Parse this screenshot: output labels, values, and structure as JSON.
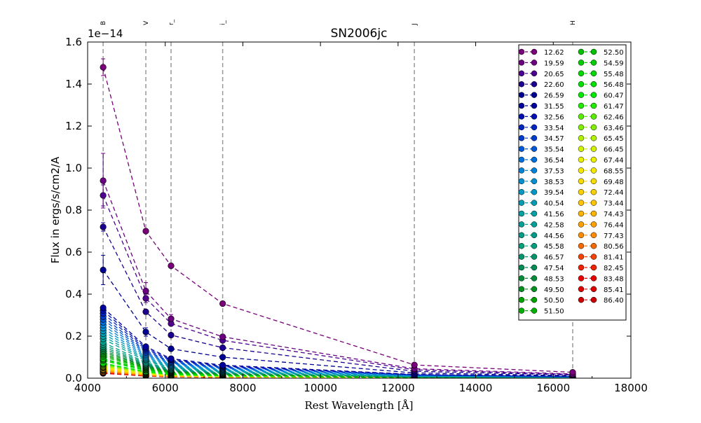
{
  "chart_data": {
    "type": "line",
    "title": "SN2006jc",
    "xlabel": "Rest Wavelength [Å]",
    "ylabel": "Flux in ergs/s/cm2/A",
    "y_offset_text": "1e−14",
    "y_multiplier": 1e-14,
    "xlim": [
      4000,
      18000
    ],
    "ylim": [
      0.0,
      1.6
    ],
    "xticks": [
      "4000",
      "6000",
      "8000",
      "10000",
      "12000",
      "14000",
      "16000",
      "18000"
    ],
    "yticks": [
      "0.0",
      "0.2",
      "0.4",
      "0.6",
      "0.8",
      "1.0",
      "1.2",
      "1.4",
      "1.6"
    ],
    "line_style": "dashed",
    "grid": false,
    "legend_position": "top-right",
    "legend_columns": 2,
    "bands": [
      {
        "name": "B",
        "wavelength": 4400
      },
      {
        "name": "V",
        "wavelength": 5500
      },
      {
        "name": "r_",
        "wavelength": 6150
      },
      {
        "name": "i_",
        "wavelength": 7480
      },
      {
        "name": "J",
        "wavelength": 12420
      },
      {
        "name": "H",
        "wavelength": 16500
      }
    ],
    "series": [
      {
        "name": "12.62",
        "color": "#780078",
        "values": [
          1.48,
          0.7,
          0.535,
          0.355,
          0.063,
          0.028
        ],
        "errors": [
          0.04,
          0.01,
          0.01,
          0.01,
          0.005,
          0.003
        ]
      },
      {
        "name": "19.59",
        "color": "#6b0080",
        "values": [
          0.94,
          0.415,
          0.283,
          0.197,
          0.045,
          0.02
        ],
        "errors": [
          0.13,
          0.04,
          0.02,
          0.01,
          0.004,
          0.003
        ]
      },
      {
        "name": "20.65",
        "color": "#4b0090",
        "values": [
          0.87,
          0.38,
          0.26,
          0.18,
          0.04,
          0.018
        ],
        "errors": [
          0.05,
          0.02,
          0.01,
          0.01,
          0.004,
          0.003
        ]
      },
      {
        "name": "22.60",
        "color": "#1e0090",
        "values": [
          0.72,
          0.316,
          0.205,
          0.145,
          0.033,
          0.015
        ],
        "errors": [
          0.02,
          0.01,
          0.01,
          0.01,
          0.003,
          0.002
        ]
      },
      {
        "name": "26.59",
        "color": "#000090",
        "values": [
          0.515,
          0.22,
          0.14,
          0.1,
          0.025,
          0.012
        ],
        "errors": [
          0.07,
          0.02,
          0.01,
          0.01,
          0.003,
          0.002
        ]
      },
      {
        "name": "31.55",
        "color": "#00009c",
        "values": [
          0.335,
          0.15,
          0.093,
          0.062,
          0.018,
          0.009
        ],
        "errors": [
          0.01,
          0.01,
          0.005,
          0.004,
          0.002,
          0.002
        ]
      },
      {
        "name": "32.56",
        "color": "#0010b0",
        "values": [
          0.322,
          0.143,
          0.088,
          0.058,
          0.017,
          0.009
        ],
        "errors": [
          0.01,
          0.01,
          0.005,
          0.004,
          0.002,
          0.002
        ]
      },
      {
        "name": "33.54",
        "color": "#0024c0",
        "values": [
          0.308,
          0.136,
          0.084,
          0.055,
          0.016,
          0.008
        ],
        "errors": [
          0.01,
          0.01,
          0.005,
          0.004,
          0.002,
          0.002
        ]
      },
      {
        "name": "34.57",
        "color": "#003ccc",
        "values": [
          0.293,
          0.129,
          0.079,
          0.052,
          0.015,
          0.008
        ],
        "errors": [
          0.01,
          0.01,
          0.005,
          0.004,
          0.002,
          0.002
        ]
      },
      {
        "name": "35.54",
        "color": "#0058d8",
        "values": [
          0.28,
          0.123,
          0.075,
          0.049,
          0.014,
          0.007
        ],
        "errors": [
          0.01,
          0.01,
          0.005,
          0.004,
          0.002,
          0.002
        ]
      },
      {
        "name": "36.54",
        "color": "#0070dc",
        "values": [
          0.266,
          0.117,
          0.071,
          0.046,
          0.013,
          0.007
        ],
        "errors": [
          0.01,
          0.01,
          0.005,
          0.004,
          0.002,
          0.002
        ]
      },
      {
        "name": "37.53",
        "color": "#0082d8",
        "values": [
          0.252,
          0.111,
          0.067,
          0.043,
          0.012,
          0.006
        ],
        "errors": [
          0.01,
          0.01,
          0.005,
          0.004,
          0.002,
          0.002
        ]
      },
      {
        "name": "38.53",
        "color": "#0090d0",
        "values": [
          0.238,
          0.105,
          0.063,
          0.04,
          0.011,
          0.006
        ],
        "errors": [
          0.01,
          0.01,
          0.005,
          0.004,
          0.002,
          0.002
        ]
      },
      {
        "name": "39.54",
        "color": "#0098c4",
        "values": [
          0.225,
          0.099,
          0.059,
          0.037,
          0.01,
          0.005
        ],
        "errors": [
          0.01,
          0.01,
          0.005,
          0.004,
          0.002,
          0.002
        ]
      },
      {
        "name": "40.54",
        "color": "#009cb4",
        "values": [
          0.212,
          0.093,
          0.055,
          0.034,
          0.009,
          0.005
        ],
        "errors": [
          0.01,
          0.01,
          0.005,
          0.004,
          0.002,
          0.002
        ]
      },
      {
        "name": "41.56",
        "color": "#00a0a4",
        "values": [
          0.199,
          0.088,
          0.051,
          0.032,
          0.008,
          0.004
        ],
        "errors": [
          0.01,
          0.01,
          0.005,
          0.004,
          0.002,
          0.002
        ]
      },
      {
        "name": "42.58",
        "color": "#00a098",
        "values": [
          0.187,
          0.082,
          0.048,
          0.03,
          0.008,
          0.004
        ],
        "errors": [
          0.01,
          0.01,
          0.005,
          0.004,
          0.002,
          0.002
        ]
      },
      {
        "name": "44.56",
        "color": "#009c88",
        "values": [
          0.17,
          0.075,
          0.044,
          0.027,
          0.007,
          0.004
        ],
        "errors": [
          0.01,
          0.01,
          0.005,
          0.004,
          0.002,
          0.002
        ]
      },
      {
        "name": "45.58",
        "color": "#00a07c",
        "values": [
          0.16,
          0.07,
          0.041,
          0.025,
          0.007,
          0.003
        ],
        "errors": [
          0.01,
          0.01,
          0.005,
          0.004,
          0.002,
          0.002
        ]
      },
      {
        "name": "46.57",
        "color": "#00946c",
        "values": [
          0.15,
          0.066,
          0.038,
          0.024,
          0.006,
          0.003
        ],
        "errors": [
          0.01,
          0.01,
          0.005,
          0.004,
          0.002,
          0.002
        ]
      },
      {
        "name": "47.54",
        "color": "#008c54",
        "values": [
          0.141,
          0.062,
          0.036,
          0.022,
          0.006,
          0.003
        ],
        "errors": [
          0.01,
          0.01,
          0.005,
          0.004,
          0.002,
          0.002
        ]
      },
      {
        "name": "48.53",
        "color": "#008c38",
        "values": [
          0.132,
          0.058,
          0.034,
          0.021,
          0.005,
          0.003
        ],
        "errors": [
          0.01,
          0.01,
          0.005,
          0.004,
          0.002,
          0.002
        ]
      },
      {
        "name": "49.50",
        "color": "#009020",
        "values": [
          0.124,
          0.055,
          0.032,
          0.02,
          0.005,
          0.002
        ],
        "errors": [
          0.01,
          0.01,
          0.005,
          0.004,
          0.002,
          0.002
        ]
      },
      {
        "name": "50.50",
        "color": "#00a000",
        "values": [
          0.116,
          0.051,
          0.03,
          0.018,
          0.005,
          0.002
        ],
        "errors": [
          0.01,
          0.01,
          0.005,
          0.004,
          0.002,
          0.002
        ]
      },
      {
        "name": "51.50",
        "color": "#00b000",
        "values": [
          0.109,
          0.048,
          0.028,
          0.017,
          0.004,
          0.002
        ],
        "errors": [
          0.01,
          0.01,
          0.005,
          0.004,
          0.002,
          0.002
        ]
      },
      {
        "name": "52.50",
        "color": "#00c000",
        "values": [
          0.102,
          0.045,
          0.026,
          0.016,
          0.004,
          0.002
        ],
        "errors": [
          0.01,
          0.01,
          0.005,
          0.004,
          0.002,
          0.002
        ]
      },
      {
        "name": "54.59",
        "color": "#00cc00",
        "values": [
          0.093,
          0.041,
          0.024,
          0.015,
          0.004,
          0.002
        ],
        "errors": [
          0.01,
          0.01,
          0.005,
          0.004,
          0.002,
          0.002
        ]
      },
      {
        "name": "55.48",
        "color": "#00d800",
        "values": [
          0.088,
          0.039,
          0.023,
          0.014,
          0.004,
          0.002
        ],
        "errors": [
          0.01,
          0.01,
          0.005,
          0.004,
          0.002,
          0.002
        ]
      },
      {
        "name": "56.48",
        "color": "#00e000",
        "values": [
          0.083,
          0.037,
          0.021,
          0.013,
          0.003,
          0.002
        ],
        "errors": [
          0.01,
          0.01,
          0.005,
          0.004,
          0.002,
          0.002
        ]
      },
      {
        "name": "60.47",
        "color": "#00e800",
        "values": [
          0.072,
          0.032,
          0.018,
          0.011,
          0.003,
          0.002
        ],
        "errors": [
          0.01,
          0.01,
          0.005,
          0.004,
          0.002,
          0.002
        ]
      },
      {
        "name": "61.47",
        "color": "#20ec00",
        "values": [
          0.069,
          0.03,
          0.018,
          0.011,
          0.003,
          0.001
        ],
        "errors": [
          0.01,
          0.01,
          0.005,
          0.004,
          0.002,
          0.002
        ]
      },
      {
        "name": "62.46",
        "color": "#58ec00",
        "values": [
          0.066,
          0.029,
          0.017,
          0.01,
          0.003,
          0.001
        ],
        "errors": [
          0.01,
          0.01,
          0.005,
          0.004,
          0.002,
          0.002
        ]
      },
      {
        "name": "63.46",
        "color": "#80ec00",
        "values": [
          0.063,
          0.028,
          0.016,
          0.01,
          0.003,
          0.001
        ],
        "errors": [
          0.01,
          0.01,
          0.005,
          0.004,
          0.002,
          0.002
        ]
      },
      {
        "name": "65.45",
        "color": "#b0f000",
        "values": [
          0.058,
          0.026,
          0.015,
          0.009,
          0.002,
          0.001
        ],
        "errors": [
          0.01,
          0.01,
          0.005,
          0.004,
          0.002,
          0.002
        ]
      },
      {
        "name": "66.45",
        "color": "#d0f000",
        "values": [
          0.055,
          0.024,
          0.014,
          0.009,
          0.002,
          0.001
        ],
        "errors": [
          0.01,
          0.01,
          0.005,
          0.004,
          0.002,
          0.002
        ]
      },
      {
        "name": "67.44",
        "color": "#ecf000",
        "values": [
          0.053,
          0.023,
          0.013,
          0.008,
          0.002,
          0.001
        ],
        "errors": [
          0.01,
          0.01,
          0.005,
          0.004,
          0.002,
          0.002
        ]
      },
      {
        "name": "68.55",
        "color": "#f4e800",
        "values": [
          0.05,
          0.022,
          0.013,
          0.008,
          0.002,
          0.001
        ],
        "errors": [
          0.01,
          0.01,
          0.005,
          0.004,
          0.002,
          0.002
        ]
      },
      {
        "name": "69.48",
        "color": "#f8dc00",
        "values": [
          0.048,
          0.021,
          0.012,
          0.008,
          0.002,
          0.001
        ],
        "errors": [
          0.01,
          0.01,
          0.005,
          0.004,
          0.002,
          0.002
        ]
      },
      {
        "name": "72.44",
        "color": "#fcd000",
        "values": [
          0.043,
          0.019,
          0.011,
          0.007,
          0.002,
          0.001
        ],
        "errors": [
          0.01,
          0.01,
          0.005,
          0.004,
          0.002,
          0.002
        ]
      },
      {
        "name": "73.44",
        "color": "#ffc400",
        "values": [
          0.041,
          0.018,
          0.01,
          0.006,
          0.002,
          0.001
        ],
        "errors": [
          0.01,
          0.01,
          0.005,
          0.004,
          0.002,
          0.002
        ]
      },
      {
        "name": "74.43",
        "color": "#ffb400",
        "values": [
          0.039,
          0.017,
          0.01,
          0.006,
          0.002,
          0.001
        ],
        "errors": [
          0.01,
          0.01,
          0.005,
          0.004,
          0.002,
          0.002
        ]
      },
      {
        "name": "76.44",
        "color": "#ffa000",
        "values": [
          0.036,
          0.016,
          0.009,
          0.006,
          0.001,
          0.001
        ],
        "errors": [
          0.01,
          0.01,
          0.005,
          0.004,
          0.002,
          0.002
        ]
      },
      {
        "name": "77.43",
        "color": "#ff8c00",
        "values": [
          0.034,
          0.015,
          0.009,
          0.005,
          0.001,
          0.001
        ],
        "errors": [
          0.01,
          0.01,
          0.005,
          0.004,
          0.002,
          0.002
        ]
      },
      {
        "name": "80.56",
        "color": "#f86800",
        "values": [
          0.03,
          0.013,
          0.008,
          0.005,
          0.001,
          0.001
        ],
        "errors": [
          0.01,
          0.01,
          0.005,
          0.004,
          0.002,
          0.002
        ]
      },
      {
        "name": "81.41",
        "color": "#f44000",
        "values": [
          0.029,
          0.013,
          0.007,
          0.005,
          0.001,
          0.001
        ],
        "errors": [
          0.01,
          0.01,
          0.005,
          0.004,
          0.002,
          0.002
        ]
      },
      {
        "name": "82.45",
        "color": "#f02000",
        "values": [
          0.028,
          0.012,
          0.007,
          0.004,
          0.001,
          0.001
        ],
        "errors": [
          0.01,
          0.01,
          0.005,
          0.004,
          0.002,
          0.002
        ]
      },
      {
        "name": "83.48",
        "color": "#e80000",
        "values": [
          0.026,
          0.012,
          0.007,
          0.004,
          0.001,
          0.001
        ],
        "errors": [
          0.01,
          0.01,
          0.005,
          0.004,
          0.002,
          0.002
        ]
      },
      {
        "name": "85.41",
        "color": "#dc0000",
        "values": [
          0.024,
          0.011,
          0.006,
          0.004,
          0.001,
          0.001
        ],
        "errors": [
          0.01,
          0.01,
          0.005,
          0.004,
          0.002,
          0.002
        ]
      },
      {
        "name": "86.40",
        "color": "#cc0000",
        "values": [
          0.023,
          0.01,
          0.006,
          0.004,
          0.001,
          0.001
        ],
        "errors": [
          0.01,
          0.01,
          0.005,
          0.004,
          0.002,
          0.002
        ]
      }
    ]
  }
}
